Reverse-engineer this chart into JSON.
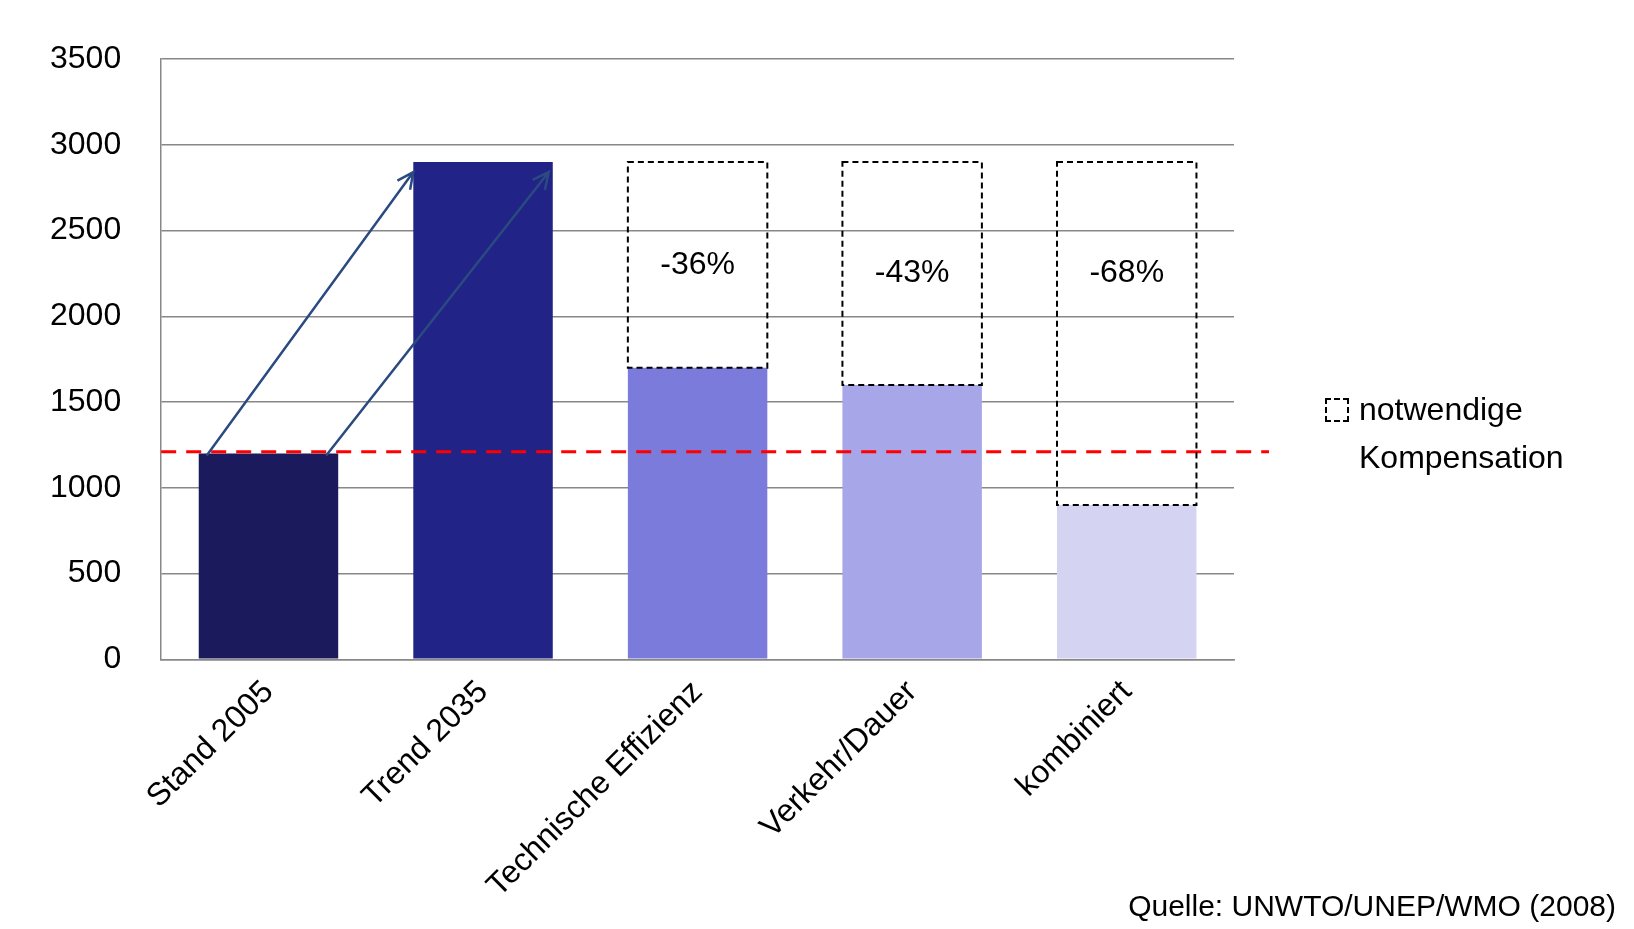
{
  "chart_data": {
    "type": "bar",
    "stacked": true,
    "categories": [
      "Stand 2005",
      "Trend 2035",
      "Technische Effizienz",
      "Verkehr/Dauer",
      "kombiniert"
    ],
    "series": [
      {
        "colors": [
          "#1a1a5c",
          "#212386",
          "#7b7bdc",
          "#a6a6e8",
          "#d4d4f2"
        ],
        "color": "#7b7bdc",
        "values": [
          1200,
          2900,
          1700,
          1600,
          900
        ]
      },
      {
        "name": "notwendige Kompensation",
        "color": "#000000",
        "line_style": "dashed",
        "values": [
          null,
          null,
          1200,
          1300,
          2000
        ]
      }
    ],
    "ylim": [
      0,
      3500
    ],
    "yticks": [
      0,
      500,
      1000,
      1500,
      2000,
      2500,
      3000,
      3500
    ],
    "grid": "y",
    "legend": "right",
    "ref_lines": [
      {
        "axis": "y",
        "value": 1210,
        "color": "#ff0000",
        "line_style": "dashed"
      }
    ],
    "annotations": [
      {
        "text": "-36%",
        "x": "Technische Effizienz",
        "y": 2300
      },
      {
        "text": "-43%",
        "x": "Verkehr/Dauer",
        "y": 2250
      },
      {
        "text": "-68%",
        "x": "kombiniert",
        "y": 2250
      },
      "Quelle: UNWTO/UNEP/WMO (2008)"
    ]
  }
}
